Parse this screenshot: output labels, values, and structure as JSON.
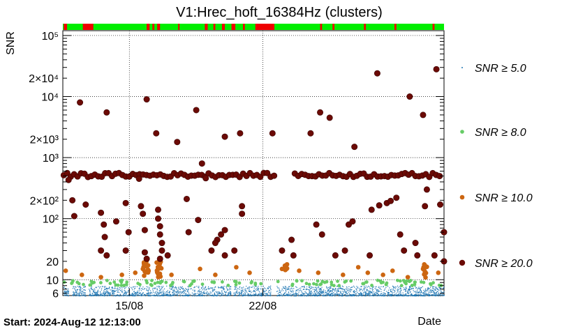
{
  "chart_data": {
    "type": "scatter",
    "title": "V1:Hrec_hoft_16384Hz (clusters)",
    "ylabel": "SNR",
    "xlabel": "Date",
    "y_scale": "log",
    "ylim": [
      5.5,
      120000
    ],
    "xlim_days_from_start": [
      0,
      20.0
    ],
    "start_label": "Start: 2024-Aug-12 12:13:00",
    "x_tick_labels": [
      {
        "label": "15/08",
        "day": 3.49
      },
      {
        "label": "22/08",
        "day": 10.49
      }
    ],
    "y_tick_labels": [
      {
        "label": "6",
        "value": 6
      },
      {
        "label": "10",
        "value": 10
      },
      {
        "label": "20",
        "value": 20
      },
      {
        "label": "10²",
        "value": 100
      },
      {
        "label": "2×10²",
        "value": 200
      },
      {
        "label": "10³",
        "value": 1000
      },
      {
        "label": "2×10³",
        "value": 2000
      },
      {
        "label": "10⁴",
        "value": 10000
      },
      {
        "label": "2×10⁴",
        "value": 20000
      },
      {
        "label": "10⁵",
        "value": 100000
      }
    ],
    "grid": true,
    "legend_position": "right",
    "legend": [
      {
        "label": "SNR ≥ 5.0",
        "color": "#1f77b4"
      },
      {
        "label": "SNR ≥ 8.0",
        "color": "#66cc66"
      },
      {
        "label": "SNR ≥ 10.0",
        "color": "#cc6611"
      },
      {
        "label": "SNR ≥ 20.0",
        "color": "#6b0a05"
      }
    ],
    "segments_bar": {
      "on_color": "#00ee00",
      "off_color": "#ee0000",
      "off_intervals_days": [
        [
          0.05,
          0.22
        ],
        [
          1.05,
          1.6
        ],
        [
          4.4,
          4.55
        ],
        [
          4.7,
          4.8
        ],
        [
          4.95,
          5.1
        ],
        [
          6.05,
          6.12
        ],
        [
          7.45,
          7.6
        ],
        [
          7.9,
          8.0
        ],
        [
          8.35,
          8.5
        ],
        [
          8.85,
          9.05
        ],
        [
          9.45,
          9.55
        ],
        [
          10.1,
          11.1
        ],
        [
          13.5,
          13.6
        ],
        [
          14.15,
          14.25
        ],
        [
          15.8,
          15.9
        ],
        [
          17.4,
          17.5
        ],
        [
          19.4,
          19.5
        ]
      ]
    },
    "series": [
      {
        "name": "SNR ≥ 20.0",
        "points": [
          [
            0.9,
            8000
          ],
          [
            2.3,
            5500
          ],
          [
            4.4,
            9000
          ],
          [
            4.9,
            2500
          ],
          [
            6.0,
            1800
          ],
          [
            7.0,
            6000
          ],
          [
            8.5,
            2200
          ],
          [
            11.0,
            2500
          ],
          [
            13.0,
            2500
          ],
          [
            15.3,
            1500
          ],
          [
            13.5,
            5500
          ],
          [
            14.0,
            4500
          ],
          [
            16.5,
            24000
          ],
          [
            18.2,
            10000
          ],
          [
            18.9,
            5000
          ],
          [
            19.6,
            28000
          ],
          [
            9.3,
            2500
          ],
          [
            7.3,
            800
          ],
          [
            0.3,
            430
          ],
          [
            1.2,
            170
          ],
          [
            0.5,
            200
          ],
          [
            0.6,
            110
          ],
          [
            2.0,
            125
          ],
          [
            2.15,
            80
          ],
          [
            2.2,
            50
          ],
          [
            2.0,
            30
          ],
          [
            2.3,
            25
          ],
          [
            2.8,
            90
          ],
          [
            3.3,
            180
          ],
          [
            3.45,
            60
          ],
          [
            3.3,
            30
          ],
          [
            4.0,
            450
          ],
          [
            4.1,
            160
          ],
          [
            4.2,
            120
          ],
          [
            4.3,
            65
          ],
          [
            4.4,
            22
          ],
          [
            4.3,
            28
          ],
          [
            5.0,
            140
          ],
          [
            5.0,
            100
          ],
          [
            5.1,
            75
          ],
          [
            5.1,
            55
          ],
          [
            5.2,
            40
          ],
          [
            5.2,
            30
          ],
          [
            5.1,
            22
          ],
          [
            5.5,
            25
          ],
          [
            6.5,
            210
          ],
          [
            6.6,
            60
          ],
          [
            7.1,
            95
          ],
          [
            7.5,
            460
          ],
          [
            7.8,
            30
          ],
          [
            8.1,
            45
          ],
          [
            8.0,
            40
          ],
          [
            8.3,
            55
          ],
          [
            8.5,
            25
          ],
          [
            8.5,
            65
          ],
          [
            9.0,
            30
          ],
          [
            9.4,
            160
          ],
          [
            9.4,
            120
          ],
          [
            11.5,
            30
          ],
          [
            12.0,
            45
          ],
          [
            12.1,
            25
          ],
          [
            13.3,
            80
          ],
          [
            13.6,
            55
          ],
          [
            14.3,
            25
          ],
          [
            14.8,
            30
          ],
          [
            15.0,
            80
          ],
          [
            15.2,
            90
          ],
          [
            16.1,
            25
          ],
          [
            16.2,
            140
          ],
          [
            16.6,
            165
          ],
          [
            17.0,
            180
          ],
          [
            17.2,
            195
          ],
          [
            17.5,
            220
          ],
          [
            17.7,
            55
          ],
          [
            17.9,
            30
          ],
          [
            18.5,
            40
          ],
          [
            18.6,
            25
          ],
          [
            19.0,
            160
          ],
          [
            19.1,
            300
          ],
          [
            19.8,
            170
          ],
          [
            20.0,
            60
          ],
          [
            20.0,
            20
          ],
          [
            19.5,
            25
          ]
        ],
        "band": {
          "snr_min": 480,
          "snr_max": 560,
          "gap_days": [
            11.2,
            12.0
          ],
          "count": 110
        }
      },
      {
        "name": "SNR ≥ 10.0",
        "points": [
          [
            0.15,
            14
          ],
          [
            1.0,
            12
          ],
          [
            2.0,
            11
          ],
          [
            3.1,
            12
          ],
          [
            3.8,
            13
          ],
          [
            4.2,
            15
          ],
          [
            4.5,
            14
          ],
          [
            5.1,
            16
          ],
          [
            5.7,
            12
          ],
          [
            7.2,
            15
          ],
          [
            8.0,
            12
          ],
          [
            9.1,
            16
          ],
          [
            9.8,
            13
          ],
          [
            11.5,
            15
          ],
          [
            12.4,
            14
          ],
          [
            13.4,
            13
          ],
          [
            14.7,
            12
          ],
          [
            15.5,
            16
          ],
          [
            16.0,
            13
          ],
          [
            16.8,
            12
          ],
          [
            17.3,
            14
          ],
          [
            18.1,
            11
          ],
          [
            18.9,
            15
          ],
          [
            19.7,
            13
          ]
        ],
        "clusters": [
          {
            "day": 4.35,
            "snr_min": 10.5,
            "snr_max": 20,
            "count": 18
          },
          {
            "day": 5.05,
            "snr_min": 10.5,
            "snr_max": 20,
            "count": 14
          },
          {
            "day": 11.7,
            "snr_min": 14,
            "snr_max": 18,
            "count": 6
          },
          {
            "day": 19.0,
            "snr_min": 10.5,
            "snr_max": 18,
            "count": 10
          }
        ]
      },
      {
        "name": "SNR ≥ 8.0",
        "band": {
          "snr_min": 8,
          "snr_max": 9.8,
          "count": 120
        }
      },
      {
        "name": "SNR ≥ 5.0",
        "band": {
          "snr_min": 5.5,
          "snr_max": 8,
          "count": 2600
        },
        "gaps_days": [
          [
            0.3,
            0.45
          ],
          [
            1.2,
            1.35
          ],
          [
            8.8,
            8.95
          ],
          [
            10.9,
            11.2
          ]
        ]
      }
    ]
  }
}
